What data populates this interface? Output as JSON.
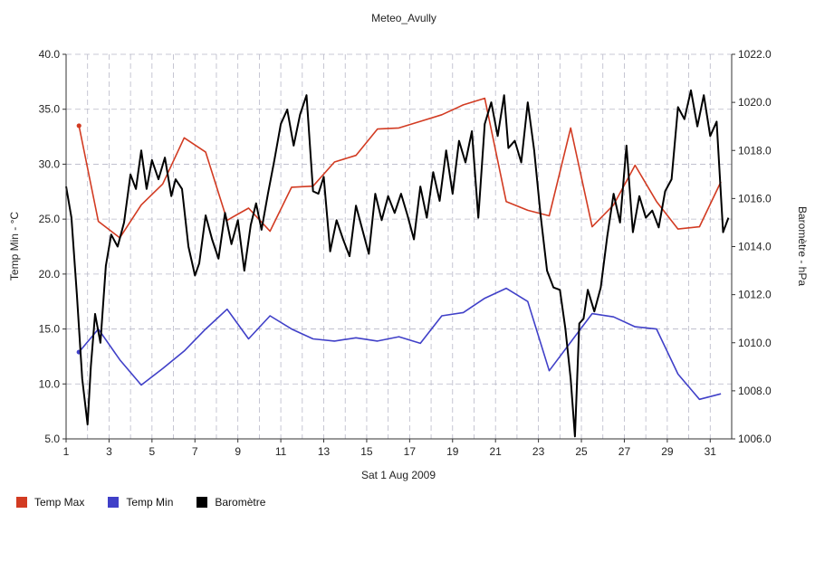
{
  "chart_data": {
    "type": "line",
    "title": "Meteo_Avully",
    "xlabel": "Sat 1 Aug 2009",
    "ylabel_left": "Temp Min - °C",
    "ylabel_right": "Baromètre - hPa",
    "x_ticks": [
      "1",
      "3",
      "5",
      "7",
      "9",
      "11",
      "13",
      "15",
      "17",
      "19",
      "21",
      "23",
      "25",
      "27",
      "29",
      "31"
    ],
    "xlim": [
      1,
      32
    ],
    "ylim_left": [
      5,
      40
    ],
    "ylim_right": [
      1006,
      1022
    ],
    "y_ticks_left": [
      "5.0",
      "10.0",
      "15.0",
      "20.0",
      "25.0",
      "30.0",
      "35.0",
      "40.0"
    ],
    "y_ticks_right": [
      "1006.0",
      "1008.0",
      "1010.0",
      "1012.0",
      "1014.0",
      "1016.0",
      "1018.0",
      "1020.0",
      "1022.0"
    ],
    "grid": true,
    "legend_position": "bottom-left",
    "series": [
      {
        "name": "Temp Max",
        "color": "#d23b22",
        "axis": "left",
        "x": [
          1.6,
          2.5,
          3.5,
          4.5,
          5.5,
          6.5,
          7.5,
          8.5,
          9.5,
          10.5,
          11.5,
          12.5,
          13.5,
          14.5,
          15.5,
          16.5,
          17.5,
          18.5,
          19.5,
          20.5,
          21.5,
          22.5,
          23.5,
          24.5,
          25.5,
          26.5,
          27.5,
          28.5,
          29.5,
          30.5,
          31.5
        ],
        "y": [
          33.5,
          24.8,
          23.3,
          26.3,
          28.2,
          32.4,
          31.1,
          24.9,
          26.0,
          23.9,
          27.9,
          28.0,
          30.2,
          30.8,
          33.2,
          33.3,
          33.9,
          34.5,
          35.4,
          36.0,
          26.6,
          25.8,
          25.3,
          33.3,
          24.3,
          26.3,
          29.9,
          26.6,
          24.1,
          24.3,
          28.4
        ]
      },
      {
        "name": "Temp Min",
        "color": "#4040c8",
        "axis": "left",
        "x": [
          1.6,
          2.5,
          3.5,
          4.5,
          5.5,
          6.5,
          7.5,
          8.5,
          9.5,
          10.5,
          11.5,
          12.5,
          13.5,
          14.5,
          15.5,
          16.5,
          17.5,
          18.5,
          19.5,
          20.5,
          21.5,
          22.5,
          23.5,
          24.5,
          25.5,
          26.5,
          27.5,
          28.5,
          29.5,
          30.5,
          31.5
        ],
        "y": [
          12.9,
          15.0,
          12.2,
          9.9,
          11.4,
          13.0,
          15.0,
          16.8,
          14.1,
          16.2,
          15.0,
          14.1,
          13.9,
          14.2,
          13.9,
          14.3,
          13.7,
          16.2,
          16.5,
          17.8,
          18.7,
          17.5,
          11.2,
          13.8,
          16.4,
          16.1,
          15.2,
          15.0,
          10.9,
          8.6,
          9.1
        ]
      },
      {
        "name": "Baromètre",
        "color": "#000000",
        "axis": "right",
        "x": [
          1.0,
          1.25,
          1.5,
          1.75,
          2.0,
          2.15,
          2.35,
          2.6,
          2.85,
          3.1,
          3.4,
          3.7,
          4.0,
          4.25,
          4.5,
          4.75,
          5.0,
          5.3,
          5.6,
          5.9,
          6.1,
          6.4,
          6.7,
          7.0,
          7.2,
          7.5,
          7.8,
          8.1,
          8.4,
          8.7,
          9.0,
          9.3,
          9.6,
          9.85,
          10.1,
          10.4,
          10.7,
          11.0,
          11.3,
          11.6,
          11.9,
          12.2,
          12.5,
          12.75,
          13.0,
          13.3,
          13.6,
          13.9,
          14.2,
          14.5,
          14.8,
          15.1,
          15.4,
          15.7,
          16.0,
          16.3,
          16.6,
          16.9,
          17.2,
          17.5,
          17.8,
          18.1,
          18.4,
          18.7,
          19.0,
          19.3,
          19.6,
          19.9,
          20.2,
          20.5,
          20.8,
          21.1,
          21.4,
          21.6,
          21.9,
          22.2,
          22.5,
          22.8,
          23.1,
          23.4,
          23.7,
          24.0,
          24.25,
          24.5,
          24.7,
          24.9,
          25.1,
          25.3,
          25.6,
          25.9,
          26.2,
          26.5,
          26.8,
          27.1,
          27.4,
          27.7,
          28.0,
          28.3,
          28.6,
          28.9,
          29.2,
          29.5,
          29.8,
          30.1,
          30.4,
          30.7,
          31.0,
          31.3,
          31.6,
          31.85
        ],
        "y": [
          1016.5,
          1015.2,
          1012.0,
          1008.5,
          1006.6,
          1009.0,
          1011.2,
          1010.0,
          1013.2,
          1014.5,
          1014.0,
          1015.0,
          1017.0,
          1016.4,
          1018.0,
          1016.4,
          1017.6,
          1016.8,
          1017.7,
          1016.1,
          1016.8,
          1016.4,
          1014.0,
          1012.8,
          1013.3,
          1015.3,
          1014.3,
          1013.5,
          1015.4,
          1014.1,
          1015.1,
          1013.0,
          1014.9,
          1015.8,
          1014.7,
          1016.2,
          1017.6,
          1019.1,
          1019.7,
          1018.2,
          1019.5,
          1020.3,
          1016.3,
          1016.2,
          1016.9,
          1013.8,
          1015.1,
          1014.3,
          1013.6,
          1015.7,
          1014.7,
          1013.7,
          1016.2,
          1015.1,
          1016.1,
          1015.4,
          1016.2,
          1015.3,
          1014.3,
          1016.5,
          1015.2,
          1017.1,
          1015.9,
          1018.0,
          1016.2,
          1018.4,
          1017.5,
          1018.8,
          1015.2,
          1019.1,
          1020.0,
          1018.6,
          1020.3,
          1018.1,
          1018.4,
          1017.5,
          1020.0,
          1018.0,
          1015.3,
          1013.0,
          1012.3,
          1012.2,
          1010.6,
          1008.5,
          1006.1,
          1010.8,
          1011.0,
          1012.2,
          1011.3,
          1012.3,
          1014.4,
          1016.2,
          1015.0,
          1018.2,
          1014.6,
          1016.1,
          1015.2,
          1015.5,
          1014.8,
          1016.3,
          1016.8,
          1019.8,
          1019.3,
          1020.5,
          1019.0,
          1020.3,
          1018.6,
          1019.2,
          1014.6,
          1015.2
        ]
      }
    ]
  }
}
